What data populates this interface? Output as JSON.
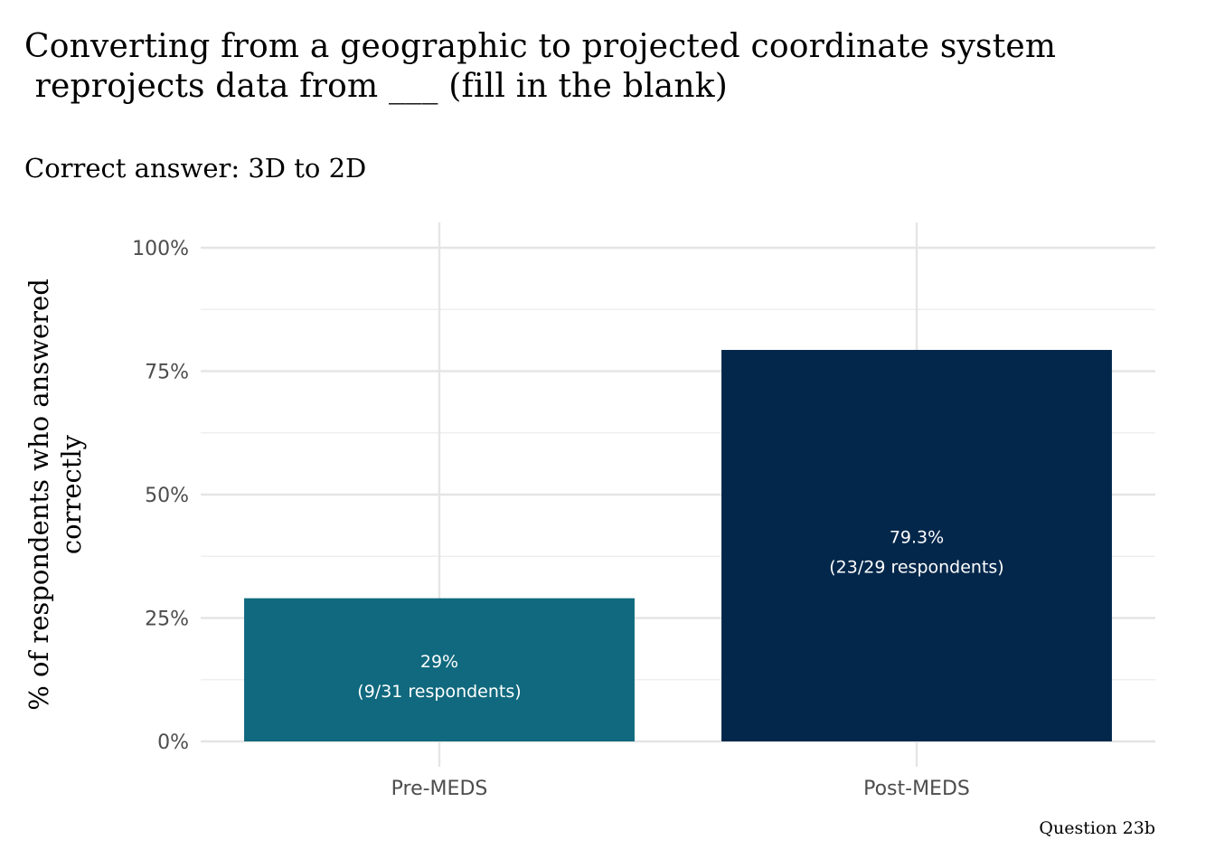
{
  "chart_data": {
    "type": "bar",
    "title": "Converting from a geographic to projected coordinate system\n reprojects data from ___ (fill in the blank)",
    "subtitle": "Correct answer: 3D to 2D",
    "caption": "Question 23b",
    "xlabel": "",
    "ylabel": "% of respondents who answered correctly",
    "ylim": [
      0,
      100
    ],
    "yticks": [
      0,
      25,
      50,
      75,
      100
    ],
    "ytick_labels": [
      "0%",
      "25%",
      "50%",
      "75%",
      "100%"
    ],
    "grid": true,
    "categories": [
      "Pre-MEDS",
      "Post-MEDS"
    ],
    "values": [
      29,
      79.3
    ],
    "colors": [
      "#10697e",
      "#03274b"
    ],
    "data_labels": [
      {
        "pct": "29%",
        "count": "(9/31 respondents)"
      },
      {
        "pct": "79.3%",
        "count": "(23/29 respondents)"
      }
    ]
  }
}
